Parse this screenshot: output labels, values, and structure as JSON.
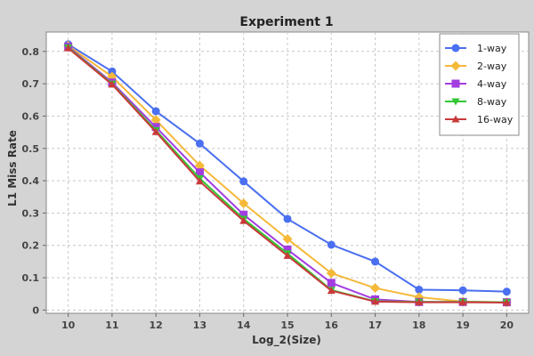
{
  "chart_data": {
    "type": "line",
    "title": "Experiment 1",
    "xlabel": "Log_2(Size)",
    "ylabel": "L1 Miss Rate",
    "x": [
      10,
      11,
      12,
      13,
      14,
      15,
      16,
      17,
      18,
      19,
      20
    ],
    "xlim": [
      9.5,
      20.5
    ],
    "ylim": [
      -0.01,
      0.86
    ],
    "yticks": [
      0,
      0.1,
      0.2,
      0.3,
      0.4,
      0.5,
      0.6,
      0.7,
      0.8
    ],
    "ytick_labels": [
      "0",
      "0.1",
      "0.2",
      "0.3",
      "0.4",
      "0.5",
      "0.6",
      "0.7",
      "0.8"
    ],
    "grid": true,
    "legend_position": "top-right",
    "series": [
      {
        "name": "1-way",
        "color": "#4a6ff0",
        "marker": "circle",
        "values": [
          0.822,
          0.738,
          0.615,
          0.515,
          0.398,
          0.282,
          0.202,
          0.15,
          0.063,
          0.061,
          0.057
        ]
      },
      {
        "name": "2-way",
        "color": "#f5b93a",
        "marker": "diamond",
        "values": [
          0.818,
          0.722,
          0.588,
          0.447,
          0.33,
          0.22,
          0.114,
          0.068,
          0.04,
          0.026,
          0.024
        ]
      },
      {
        "name": "4-way",
        "color": "#a23de0",
        "marker": "square",
        "values": [
          0.815,
          0.704,
          0.566,
          0.426,
          0.295,
          0.187,
          0.084,
          0.033,
          0.025,
          0.025,
          0.024
        ]
      },
      {
        "name": "8-way",
        "color": "#33c633",
        "marker": "triangle-down",
        "values": [
          0.812,
          0.7,
          0.556,
          0.407,
          0.282,
          0.175,
          0.062,
          0.027,
          0.025,
          0.025,
          0.024
        ]
      },
      {
        "name": "16-way",
        "color": "#c83a3a",
        "marker": "triangle-up",
        "values": [
          0.81,
          0.698,
          0.551,
          0.398,
          0.276,
          0.168,
          0.06,
          0.026,
          0.024,
          0.024,
          0.023
        ]
      }
    ]
  }
}
